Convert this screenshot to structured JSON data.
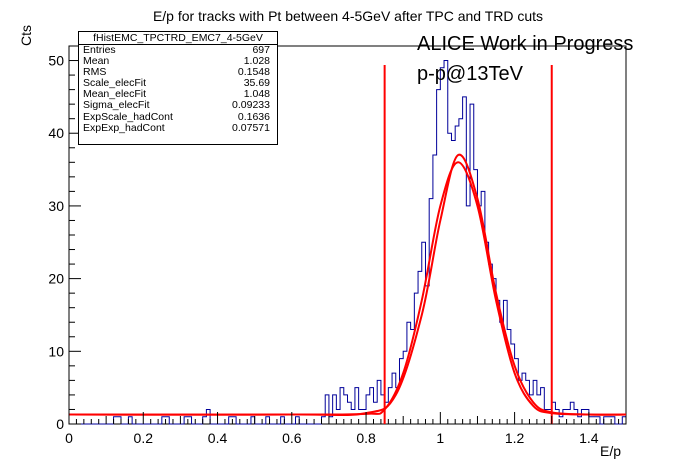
{
  "chart_data": {
    "type": "bar",
    "title": "E/p for tracks with Pt between 4-5GeV after TPC and TRD cuts",
    "xlabel": "E/p",
    "ylabel": "Cts",
    "xlim": [
      0,
      1.5
    ],
    "ylim": [
      0,
      52
    ],
    "x_ticks": [
      "0",
      "0.2",
      "0.4",
      "0.6",
      "0.8",
      "1",
      "1.2",
      "1.4"
    ],
    "y_ticks": [
      "0",
      "10",
      "20",
      "30",
      "40",
      "50"
    ],
    "bin_width": 0.01,
    "histogram": {
      "x": [
        0.12,
        0.13,
        0.16,
        0.25,
        0.26,
        0.31,
        0.32,
        0.36,
        0.37,
        0.43,
        0.44,
        0.49,
        0.53,
        0.57,
        0.61,
        0.68,
        0.69,
        0.7,
        0.71,
        0.72,
        0.73,
        0.74,
        0.75,
        0.76,
        0.77,
        0.78,
        0.79,
        0.8,
        0.81,
        0.82,
        0.83,
        0.84,
        0.85,
        0.86,
        0.87,
        0.88,
        0.89,
        0.9,
        0.91,
        0.92,
        0.93,
        0.94,
        0.95,
        0.96,
        0.97,
        0.98,
        0.99,
        1.0,
        1.01,
        1.02,
        1.03,
        1.04,
        1.05,
        1.06,
        1.07,
        1.08,
        1.09,
        1.1,
        1.11,
        1.12,
        1.13,
        1.14,
        1.15,
        1.16,
        1.17,
        1.18,
        1.19,
        1.2,
        1.21,
        1.22,
        1.23,
        1.24,
        1.25,
        1.26,
        1.27,
        1.28,
        1.29,
        1.3,
        1.31,
        1.32,
        1.33,
        1.34,
        1.35,
        1.36,
        1.37,
        1.38,
        1.39,
        1.4,
        1.41,
        1.42,
        1.43,
        1.44,
        1.45,
        1.46,
        1.47,
        1.48,
        1.49
      ],
      "y": [
        1,
        1,
        1,
        1,
        1,
        1,
        1,
        1,
        2,
        1,
        1,
        1,
        1,
        1,
        1,
        1,
        4,
        1,
        4,
        2,
        5,
        4,
        3,
        2,
        5,
        2,
        2,
        4,
        5,
        3,
        6,
        4,
        3,
        5,
        7,
        5,
        9,
        10,
        14,
        13,
        18,
        21,
        25,
        19,
        31,
        37,
        46,
        49,
        50,
        40,
        39,
        41,
        42,
        45,
        30,
        44,
        35,
        30,
        32,
        25,
        22,
        20,
        17,
        14,
        17,
        13,
        11,
        9,
        6,
        7,
        6,
        4,
        6,
        4,
        5,
        2,
        2,
        3,
        2,
        1,
        2,
        2,
        3,
        2,
        1,
        2,
        2,
        1,
        1,
        1,
        0,
        1,
        1,
        1,
        0,
        0,
        1
      ]
    },
    "series": [
      {
        "type": "step-histogram",
        "color": "#000099"
      },
      {
        "type": "fit",
        "color": "#ff0000",
        "points": [
          [
            0,
            1.3
          ],
          [
            0.6,
            1.3
          ],
          [
            0.8,
            1.5
          ],
          [
            0.88,
            4
          ],
          [
            0.95,
            15
          ],
          [
            1.0,
            28
          ],
          [
            1.048,
            37
          ],
          [
            1.1,
            31
          ],
          [
            1.15,
            18
          ],
          [
            1.2,
            8
          ],
          [
            1.25,
            3
          ],
          [
            1.3,
            1.6
          ],
          [
            1.4,
            1.3
          ],
          [
            1.5,
            1.3
          ]
        ]
      },
      {
        "type": "fit",
        "color": "#ff0000",
        "points": [
          [
            0,
            1.3
          ],
          [
            0.6,
            1.3
          ],
          [
            0.8,
            1.4
          ],
          [
            0.85,
            2
          ],
          [
            0.9,
            7
          ],
          [
            0.95,
            17
          ],
          [
            1.0,
            30
          ],
          [
            1.048,
            36
          ],
          [
            1.1,
            30
          ],
          [
            1.15,
            17
          ],
          [
            1.2,
            7
          ],
          [
            1.25,
            2.5
          ],
          [
            1.3,
            1.5
          ],
          [
            1.4,
            1.3
          ],
          [
            1.5,
            1.3
          ]
        ]
      }
    ],
    "cut_lines": {
      "x": [
        0.85,
        1.3
      ],
      "color": "#ff0000"
    },
    "stats_box": {
      "title": "fHistEMC_TPCTRD_EMC7_4-5GeV",
      "rows": [
        {
          "label": "Entries",
          "value": "697"
        },
        {
          "label": "Mean",
          "value": "1.028"
        },
        {
          "label": "RMS",
          "value": "0.1548"
        },
        {
          "label": "Scale_elecFit",
          "value": "35.69"
        },
        {
          "label": "Mean_elecFit",
          "value": "1.048"
        },
        {
          "label": "Sigma_elecFit",
          "value": "0.09233"
        },
        {
          "label": "ExpScale_hadCont",
          "value": "0.1636"
        },
        {
          "label": "ExpExp_hadCont",
          "value": "0.07571"
        }
      ]
    },
    "annotations": [
      "ALICE Work in Progress",
      "p-p@13TeV"
    ]
  }
}
